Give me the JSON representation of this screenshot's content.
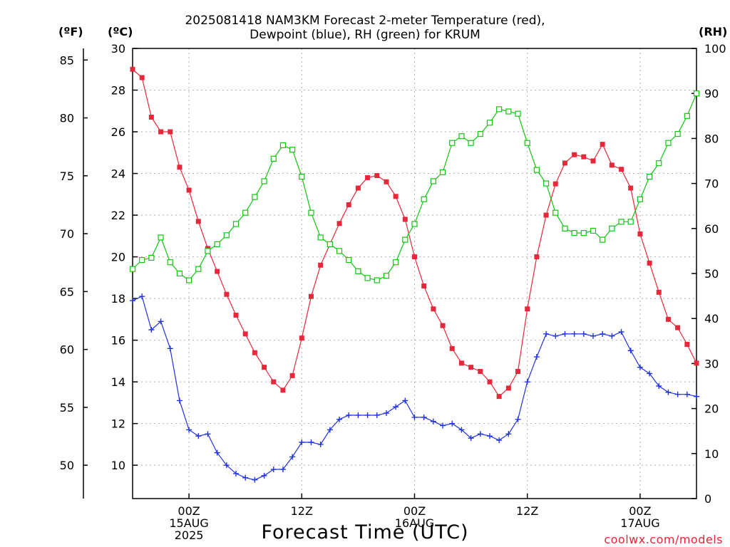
{
  "header": {
    "title_line1": "2025081418 NAM3KM Forecast 2-meter Temperature (red),",
    "title_line2": "Dewpoint (blue), RH (green) for KRUM",
    "unit_f": "(ºF)",
    "unit_c": "(ºC)",
    "unit_rh": "(RH)"
  },
  "footer": {
    "xlabel": "Forecast Time (UTC)",
    "credit": "coolwx.com/models"
  },
  "colors": {
    "temperature": "#e8283a",
    "dewpoint": "#2233e0",
    "rh": "#12c512",
    "grid": "#b0b0b0",
    "credit": "#e8243a"
  },
  "chart_data": {
    "type": "line",
    "title": "2025081418 NAM3KM Forecast 2-meter Temperature (red), Dewpoint (blue), RH (green) for KRUM",
    "xlabel": "Forecast Time (UTC)",
    "x_unit": "forecast hour from 2025-08-14 18Z",
    "xlim": [
      0,
      60
    ],
    "left_axis_c": {
      "label": "(ºC)",
      "lim": [
        8.4,
        30
      ],
      "ticks": [
        10,
        12,
        14,
        16,
        18,
        20,
        22,
        24,
        26,
        28,
        30
      ]
    },
    "left_axis_f": {
      "label": "(ºF)",
      "ticks": [
        50,
        55,
        60,
        65,
        70,
        75,
        80,
        85
      ]
    },
    "right_axis_rh": {
      "label": "(RH)",
      "lim": [
        0,
        100
      ],
      "ticks": [
        0,
        10,
        20,
        30,
        40,
        50,
        60,
        70,
        80,
        90,
        100
      ]
    },
    "x_ticks": [
      {
        "hour": 6,
        "lines": [
          "00Z",
          "15AUG",
          "2025"
        ]
      },
      {
        "hour": 18,
        "lines": [
          "12Z"
        ]
      },
      {
        "hour": 30,
        "lines": [
          "00Z",
          "16AUG"
        ]
      },
      {
        "hour": 42,
        "lines": [
          "12Z"
        ]
      },
      {
        "hour": 54,
        "lines": [
          "00Z",
          "17AUG"
        ]
      }
    ],
    "grid": true,
    "series": [
      {
        "name": "Temperature",
        "unit": "°C",
        "marker": "filled-square",
        "values": [
          29.0,
          28.6,
          26.7,
          26.0,
          26.0,
          24.3,
          23.2,
          21.7,
          20.4,
          19.3,
          18.2,
          17.2,
          16.3,
          15.4,
          14.7,
          14.0,
          13.6,
          14.3,
          16.1,
          18.1,
          19.6,
          20.6,
          21.6,
          22.5,
          23.3,
          23.8,
          23.9,
          23.6,
          22.9,
          21.8,
          20.0,
          18.6,
          17.5,
          16.7,
          15.6,
          14.9,
          14.7,
          14.5,
          14.0,
          13.3,
          13.7,
          14.5,
          17.5,
          20.0,
          22.0,
          23.5,
          24.5,
          24.9,
          24.8,
          24.6,
          25.4,
          24.4,
          24.2,
          23.3,
          21.1,
          19.7,
          18.3,
          17.0,
          16.6,
          15.8,
          14.9
        ]
      },
      {
        "name": "Dewpoint",
        "unit": "°C",
        "marker": "plus",
        "values": [
          17.9,
          18.1,
          16.5,
          16.9,
          15.6,
          13.1,
          11.7,
          11.4,
          11.5,
          10.6,
          10.0,
          9.6,
          9.4,
          9.3,
          9.5,
          9.8,
          9.8,
          10.4,
          11.1,
          11.1,
          11.0,
          11.7,
          12.2,
          12.4,
          12.4,
          12.4,
          12.4,
          12.5,
          12.8,
          13.1,
          12.3,
          12.3,
          12.1,
          11.9,
          12.0,
          11.7,
          11.3,
          11.5,
          11.4,
          11.2,
          11.5,
          12.2,
          14.0,
          15.2,
          16.3,
          16.2,
          16.3,
          16.3,
          16.3,
          16.2,
          16.3,
          16.2,
          16.4,
          15.5,
          14.7,
          14.4,
          13.8,
          13.5,
          13.4,
          13.4,
          13.3
        ]
      },
      {
        "name": "RH",
        "unit": "%",
        "marker": "open-square",
        "values": [
          51.0,
          53.0,
          53.5,
          58.0,
          52.5,
          50.0,
          48.5,
          51.0,
          55.0,
          56.5,
          58.5,
          61.0,
          63.5,
          67.0,
          70.5,
          75.5,
          78.5,
          77.5,
          71.5,
          63.5,
          58.0,
          56.5,
          55.0,
          53.0,
          50.5,
          49.0,
          48.5,
          49.5,
          52.5,
          57.5,
          61.0,
          66.5,
          70.5,
          72.5,
          79.0,
          80.5,
          79.0,
          81.0,
          83.5,
          86.5,
          86.0,
          85.5,
          79.0,
          73.0,
          70.0,
          63.5,
          60.0,
          59.0,
          59.0,
          59.5,
          57.5,
          60.0,
          61.5,
          61.5,
          66.5,
          71.5,
          74.5,
          79.0,
          81.0,
          85.0,
          90.0
        ]
      }
    ]
  }
}
